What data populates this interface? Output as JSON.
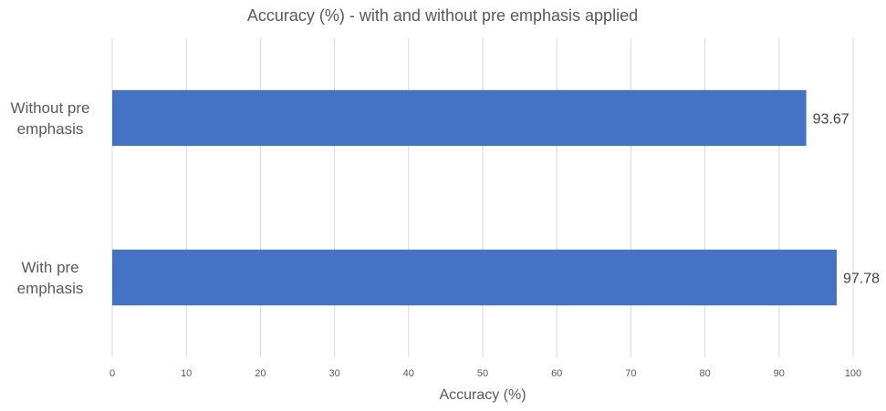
{
  "chart_data": {
    "type": "bar",
    "orientation": "horizontal",
    "title": "Accuracy (%) - with and without pre emphasis applied",
    "xlabel": "Accuracy (%)",
    "ylabel": "",
    "xlim": [
      0,
      100
    ],
    "xticks": [
      0,
      10,
      20,
      30,
      40,
      50,
      60,
      70,
      80,
      90,
      100
    ],
    "grid": true,
    "legend": "none",
    "categories": [
      [
        "Without pre",
        "emphasis"
      ],
      [
        "With pre",
        "emphasis"
      ]
    ],
    "values": [
      93.67,
      97.78
    ],
    "data_labels": [
      "93.67",
      "97.78"
    ],
    "bar_color": "#4472C4",
    "grid_color": "#D9D9D9",
    "text_color": "#595959"
  }
}
